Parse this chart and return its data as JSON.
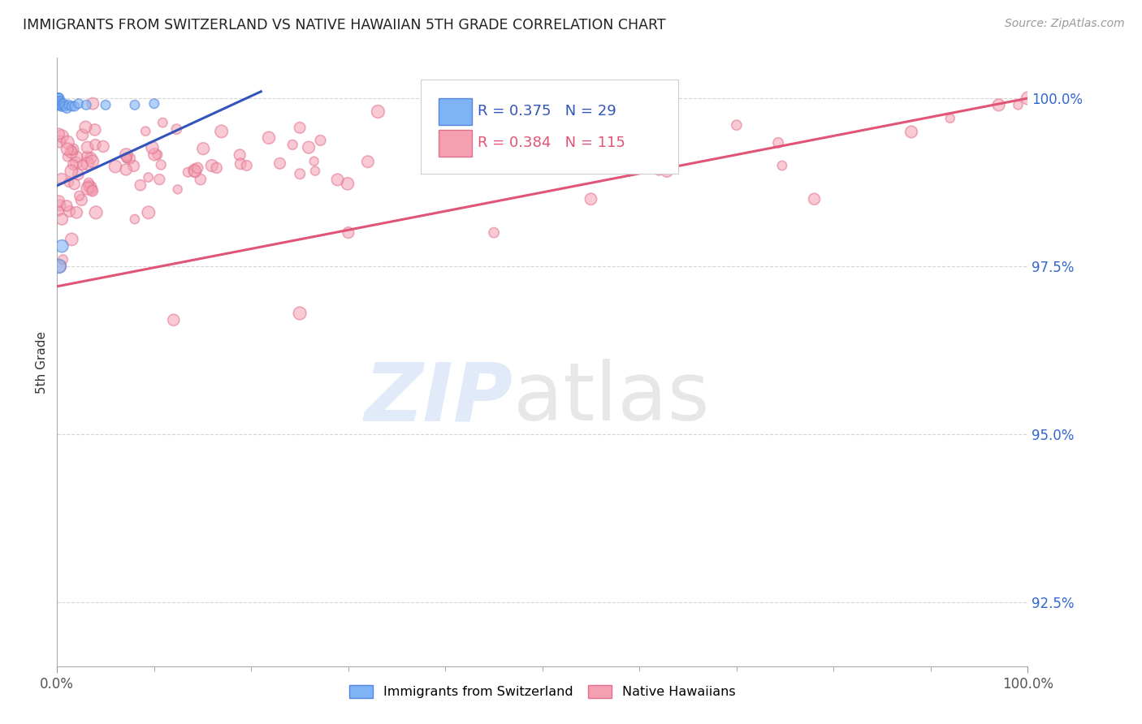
{
  "title": "IMMIGRANTS FROM SWITZERLAND VS NATIVE HAWAIIAN 5TH GRADE CORRELATION CHART",
  "source_text": "Source: ZipAtlas.com",
  "ylabel": "5th Grade",
  "x_min": 0.0,
  "x_max": 1.0,
  "y_min": 0.9155,
  "y_max": 1.006,
  "y_ticks": [
    0.925,
    0.95,
    0.975,
    1.0
  ],
  "y_tick_labels": [
    "92.5%",
    "95.0%",
    "97.5%",
    "100.0%"
  ],
  "x_ticks_major": [
    0.0,
    1.0
  ],
  "x_tick_labels": [
    "0.0%",
    "100.0%"
  ],
  "x_ticks_minor": [
    0.1,
    0.2,
    0.3,
    0.4,
    0.5,
    0.6,
    0.7,
    0.8,
    0.9
  ],
  "grid_color": "#cccccc",
  "background_color": "#ffffff",
  "swiss_color": "#7fb3f5",
  "hawaiian_color": "#f5a0b0",
  "swiss_edge_color": "#5588dd",
  "hawaiian_edge_color": "#e07090",
  "swiss_line_color": "#3355bb",
  "hawaiian_line_color": "#e05575",
  "swiss_R": 0.375,
  "swiss_N": 29,
  "hawaiian_R": 0.384,
  "hawaiian_N": 115,
  "legend_label_swiss": "Immigrants from Switzerland",
  "legend_label_hawaiian": "Native Hawaiians",
  "swiss_line_x": [
    0.0,
    0.21
  ],
  "swiss_line_y": [
    0.987,
    1.001
  ],
  "hawaiian_line_x": [
    0.0,
    1.0
  ],
  "hawaiian_line_y": [
    0.972,
    1.0
  ]
}
